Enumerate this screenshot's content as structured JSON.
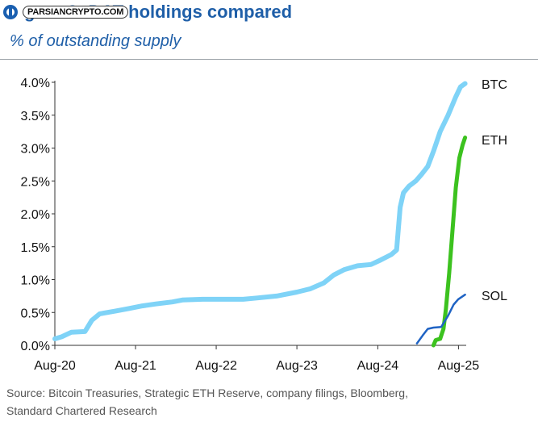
{
  "header": {
    "title": "gure 8: DAT holdings compared",
    "subtitle": "% of outstanding supply"
  },
  "watermark": {
    "text": "PARSIANCRYPTO.COM",
    "logo_icon": "parsiancrypto-logo-icon"
  },
  "chart_data": {
    "type": "line",
    "title": "gure 8: DAT holdings compared",
    "subtitle": "% of outstanding supply",
    "xlabel": "",
    "ylabel": "",
    "x_ticks": [
      "Aug-20",
      "Aug-21",
      "Aug-22",
      "Aug-23",
      "Aug-24",
      "Aug-25"
    ],
    "y_ticks": [
      "0.0%",
      "0.5%",
      "1.0%",
      "1.5%",
      "2.0%",
      "2.5%",
      "3.0%",
      "3.5%",
      "4.0%"
    ],
    "ylim": [
      0,
      4.0
    ],
    "xlim": [
      "2020-08-01",
      "2025-09-05"
    ],
    "grid": false,
    "legend": "labels at right end of each line",
    "series": [
      {
        "name": "BTC",
        "color": "#7fd3f7",
        "points": [
          [
            "2020-08-01",
            0.1
          ],
          [
            "2020-09-01",
            0.13
          ],
          [
            "2020-10-15",
            0.2
          ],
          [
            "2020-12-15",
            0.21
          ],
          [
            "2021-01-15",
            0.38
          ],
          [
            "2021-02-20",
            0.48
          ],
          [
            "2021-05-01",
            0.52
          ],
          [
            "2021-07-01",
            0.56
          ],
          [
            "2021-09-01",
            0.6
          ],
          [
            "2021-11-01",
            0.63
          ],
          [
            "2022-01-15",
            0.66
          ],
          [
            "2022-03-01",
            0.69
          ],
          [
            "2022-06-01",
            0.7
          ],
          [
            "2022-09-01",
            0.7
          ],
          [
            "2022-12-01",
            0.7
          ],
          [
            "2023-02-01",
            0.72
          ],
          [
            "2023-05-01",
            0.75
          ],
          [
            "2023-08-01",
            0.81
          ],
          [
            "2023-10-01",
            0.86
          ],
          [
            "2023-12-01",
            0.95
          ],
          [
            "2024-01-15",
            1.07
          ],
          [
            "2024-03-01",
            1.15
          ],
          [
            "2024-05-01",
            1.21
          ],
          [
            "2024-07-01",
            1.23
          ],
          [
            "2024-08-15",
            1.3
          ],
          [
            "2024-10-01",
            1.38
          ],
          [
            "2024-10-25",
            1.45
          ],
          [
            "2024-11-10",
            2.1
          ],
          [
            "2024-11-25",
            2.32
          ],
          [
            "2024-12-20",
            2.42
          ],
          [
            "2025-01-20",
            2.5
          ],
          [
            "2025-02-15",
            2.6
          ],
          [
            "2025-03-15",
            2.72
          ],
          [
            "2025-04-10",
            2.95
          ],
          [
            "2025-05-10",
            3.25
          ],
          [
            "2025-06-15",
            3.5
          ],
          [
            "2025-07-20",
            3.78
          ],
          [
            "2025-08-10",
            3.93
          ],
          [
            "2025-08-31",
            3.98
          ]
        ]
      },
      {
        "name": "ETH",
        "color": "#3cc21f",
        "points": [
          [
            "2025-04-10",
            0.0
          ],
          [
            "2025-04-20",
            0.08
          ],
          [
            "2025-05-10",
            0.1
          ],
          [
            "2025-05-25",
            0.25
          ],
          [
            "2025-06-05",
            0.55
          ],
          [
            "2025-06-20",
            1.1
          ],
          [
            "2025-07-05",
            1.75
          ],
          [
            "2025-07-20",
            2.4
          ],
          [
            "2025-08-05",
            2.85
          ],
          [
            "2025-08-20",
            3.05
          ],
          [
            "2025-08-31",
            3.16
          ]
        ]
      },
      {
        "name": "SOL",
        "color": "#1f63c4",
        "points": [
          [
            "2025-01-25",
            0.03
          ],
          [
            "2025-02-20",
            0.15
          ],
          [
            "2025-03-15",
            0.25
          ],
          [
            "2025-04-10",
            0.27
          ],
          [
            "2025-05-15",
            0.28
          ],
          [
            "2025-06-15",
            0.45
          ],
          [
            "2025-07-10",
            0.62
          ],
          [
            "2025-07-31",
            0.7
          ],
          [
            "2025-08-31",
            0.77
          ]
        ]
      }
    ]
  },
  "footer": {
    "source_line1": "Source: Bitcoin Treasuries, Strategic ETH Reserve, company filings, Bloomberg,",
    "source_line2": "Standard Chartered Research"
  }
}
